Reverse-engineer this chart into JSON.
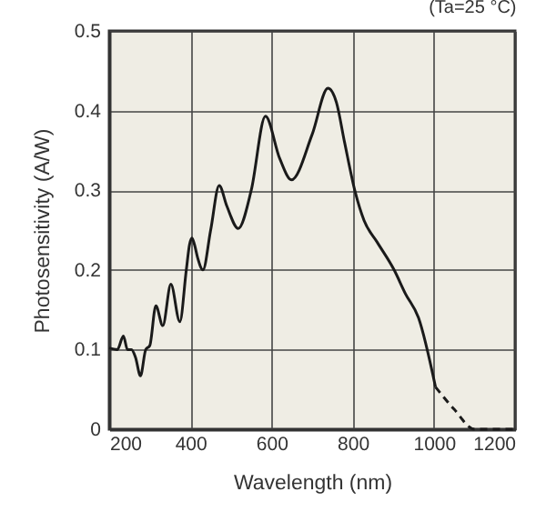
{
  "chart_data": {
    "type": "line",
    "xlabel": "Wavelength (nm)",
    "ylabel": "Photosensitivity (A/W)",
    "annotations": [
      "(Ta=25 °C)"
    ],
    "xlim": [
      200,
      1200
    ],
    "ylim": [
      0,
      0.5
    ],
    "xticks": [
      200,
      400,
      600,
      800,
      1000,
      1200
    ],
    "yticks": [
      0,
      0.1,
      0.2,
      0.3,
      0.4,
      0.5
    ],
    "grid": true,
    "marker": "none",
    "series": [
      {
        "color": "#1a1a1a",
        "line_style": "solid",
        "x": [
          200,
          220,
          235,
          245,
          255,
          265,
          277,
          290,
          300,
          315,
          332,
          352,
          374,
          390,
          398,
          404,
          410,
          418,
          431,
          450,
          471,
          490,
          518,
          550,
          585,
          620,
          649,
          700,
          739,
          760,
          780,
          806,
          828,
          860,
          902,
          930,
          962,
          1004
        ],
        "values": [
          0.102,
          0.1,
          0.117,
          0.1,
          0.1,
          0.09,
          0.067,
          0.1,
          0.105,
          0.155,
          0.13,
          0.182,
          0.135,
          0.2,
          0.232,
          0.24,
          0.232,
          0.215,
          0.2,
          0.25,
          0.306,
          0.28,
          0.252,
          0.3,
          0.393,
          0.34,
          0.313,
          0.37,
          0.428,
          0.41,
          0.36,
          0.298,
          0.262,
          0.235,
          0.2,
          0.17,
          0.14,
          0.053
        ]
      },
      {
        "color": "#1a1a1a",
        "line_style": "dashed",
        "x": [
          1004,
          1050,
          1100,
          1150,
          1200
        ],
        "values": [
          0.053,
          0.025,
          0,
          0,
          0
        ]
      }
    ]
  }
}
